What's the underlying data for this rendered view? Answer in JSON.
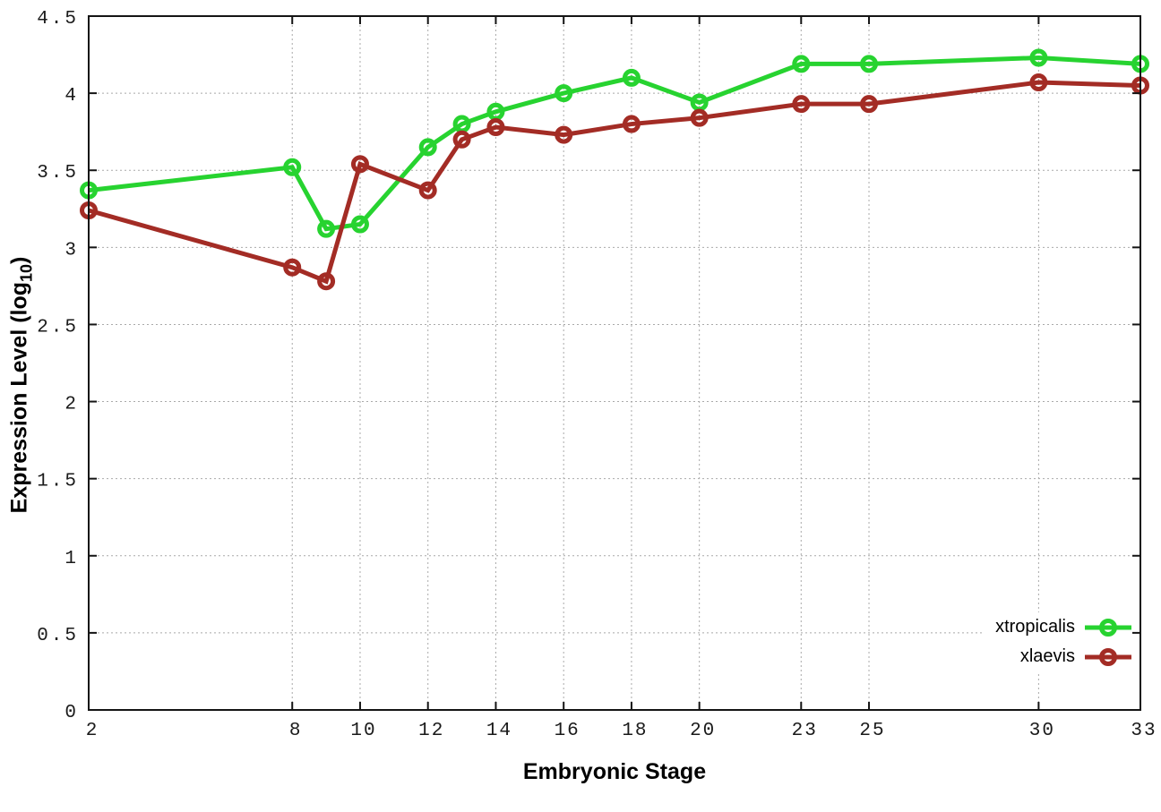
{
  "chart_data": {
    "type": "line",
    "title": "",
    "xlabel": "Embryonic Stage",
    "ylabel": "Expression Level (log10)",
    "ylabel_parts": {
      "prefix": "Expression Level (log",
      "subscript": "10",
      "suffix": ")"
    },
    "x": [
      2,
      8,
      9,
      10,
      12,
      13,
      14,
      16,
      18,
      20,
      23,
      25,
      30,
      33
    ],
    "series": [
      {
        "name": "xtropicalis",
        "color": "#27d330",
        "marker": "open-circle",
        "values": [
          3.37,
          3.52,
          3.12,
          3.15,
          3.65,
          3.8,
          3.88,
          4.0,
          4.1,
          3.94,
          4.19,
          4.19,
          4.23,
          4.19
        ]
      },
      {
        "name": "xlaevis",
        "color": "#a32c25",
        "marker": "open-circle",
        "values": [
          3.24,
          2.87,
          2.78,
          3.54,
          3.37,
          3.7,
          3.78,
          3.73,
          3.8,
          3.84,
          3.93,
          3.93,
          4.07,
          4.05
        ]
      }
    ],
    "xlim": [
      2,
      33
    ],
    "ylim": [
      0,
      4.5
    ],
    "xticks": [
      2,
      8,
      10,
      12,
      14,
      16,
      18,
      20,
      23,
      25,
      30,
      33
    ],
    "xtick_labels": [
      "2",
      "8",
      "10",
      "12",
      "14",
      "16",
      "18",
      "20",
      "23",
      "25",
      "30",
      "33"
    ],
    "yticks": [
      0,
      0.5,
      1,
      1.5,
      2,
      2.5,
      3,
      3.5,
      4,
      4.5
    ],
    "ytick_labels": [
      "0",
      "0.5",
      "1",
      "1.5",
      "2",
      "2.5",
      "3",
      "3.5",
      "4",
      "4.5"
    ],
    "grid": true,
    "legend_position": "bottom-right-inside",
    "background": "#ffffff",
    "border_color": "#141414"
  }
}
